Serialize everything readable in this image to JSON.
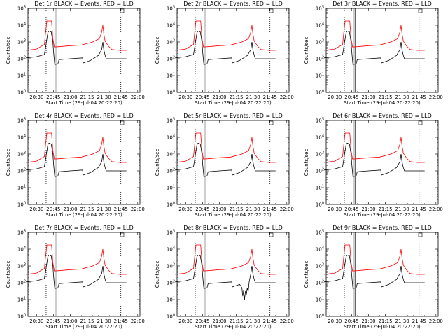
{
  "layout": {
    "rows": 3,
    "cols": 3
  },
  "shared": {
    "xlabel": "Start Time (29-Jul-04 20:22:20)",
    "ylabel": "Counts/sec",
    "x_tick_labels": [
      "20:30",
      "20:45",
      "21:00",
      "21:15",
      "21:30",
      "21:45",
      "22:00"
    ],
    "y_tick_base": "10",
    "y_tick_exponents": [
      "0",
      "1",
      "2",
      "3",
      "4",
      "5"
    ],
    "colors": {
      "events": "#000000",
      "lld": "#ff0000",
      "axes": "#000000"
    }
  },
  "chart_data": [
    {
      "type": "line",
      "title": "Det 1r BLACK = Events, RED = LLD",
      "xlim": [
        "20:22:20",
        "22:02"
      ],
      "ylim": [
        1,
        100000
      ],
      "yscale": "log",
      "series": [
        {
          "name": "Events",
          "color": "#000000"
        },
        {
          "name": "LLD",
          "color": "#ff0000"
        }
      ]
    },
    {
      "type": "line",
      "title": "Det 2r BLACK = Events, RED = LLD",
      "xlim": [
        "20:22:20",
        "22:02"
      ],
      "ylim": [
        1,
        100000
      ],
      "yscale": "log",
      "series": [
        {
          "name": "Events",
          "color": "#000000"
        },
        {
          "name": "LLD",
          "color": "#ff0000"
        }
      ]
    },
    {
      "type": "line",
      "title": "Det 3r BLACK = Events, RED = LLD",
      "xlim": [
        "20:22:20",
        "22:02"
      ],
      "ylim": [
        1,
        100000
      ],
      "yscale": "log",
      "series": [
        {
          "name": "Events",
          "color": "#000000"
        },
        {
          "name": "LLD",
          "color": "#ff0000"
        }
      ]
    },
    {
      "type": "line",
      "title": "Det 4r BLACK = Events, RED = LLD",
      "xlim": [
        "20:22:20",
        "22:02"
      ],
      "ylim": [
        1,
        100000
      ],
      "yscale": "log",
      "series": [
        {
          "name": "Events",
          "color": "#000000"
        },
        {
          "name": "LLD",
          "color": "#ff0000"
        }
      ]
    },
    {
      "type": "line",
      "title": "Det 5r BLACK = Events, RED = LLD",
      "xlim": [
        "20:22:20",
        "22:02"
      ],
      "ylim": [
        1,
        100000
      ],
      "yscale": "log",
      "series": [
        {
          "name": "Events",
          "color": "#000000"
        },
        {
          "name": "LLD",
          "color": "#ff0000"
        }
      ]
    },
    {
      "type": "line",
      "title": "Det 6r BLACK = Events, RED = LLD",
      "xlim": [
        "20:22:20",
        "22:02"
      ],
      "ylim": [
        1,
        100000
      ],
      "yscale": "log",
      "series": [
        {
          "name": "Events",
          "color": "#000000"
        },
        {
          "name": "LLD",
          "color": "#ff0000"
        }
      ]
    },
    {
      "type": "line",
      "title": "Det 7r BLACK = Events, RED = LLD",
      "xlim": [
        "20:22:20",
        "22:02"
      ],
      "ylim": [
        1,
        100000
      ],
      "yscale": "log",
      "series": [
        {
          "name": "Events",
          "color": "#000000"
        },
        {
          "name": "LLD",
          "color": "#ff0000"
        }
      ]
    },
    {
      "type": "line",
      "title": "Det 8r BLACK = Events, RED = LLD",
      "xlim": [
        "20:22:20",
        "22:02"
      ],
      "ylim": [
        1,
        100000
      ],
      "yscale": "log",
      "series": [
        {
          "name": "Events",
          "color": "#000000"
        },
        {
          "name": "LLD",
          "color": "#ff0000"
        }
      ]
    },
    {
      "type": "line",
      "title": "Det 9r BLACK = Events, RED = LLD",
      "xlim": [
        "20:22:20",
        "22:02"
      ],
      "ylim": [
        1,
        100000
      ],
      "yscale": "log",
      "series": [
        {
          "name": "Events",
          "color": "#000000"
        },
        {
          "name": "LLD",
          "color": "#ff0000"
        }
      ]
    }
  ]
}
